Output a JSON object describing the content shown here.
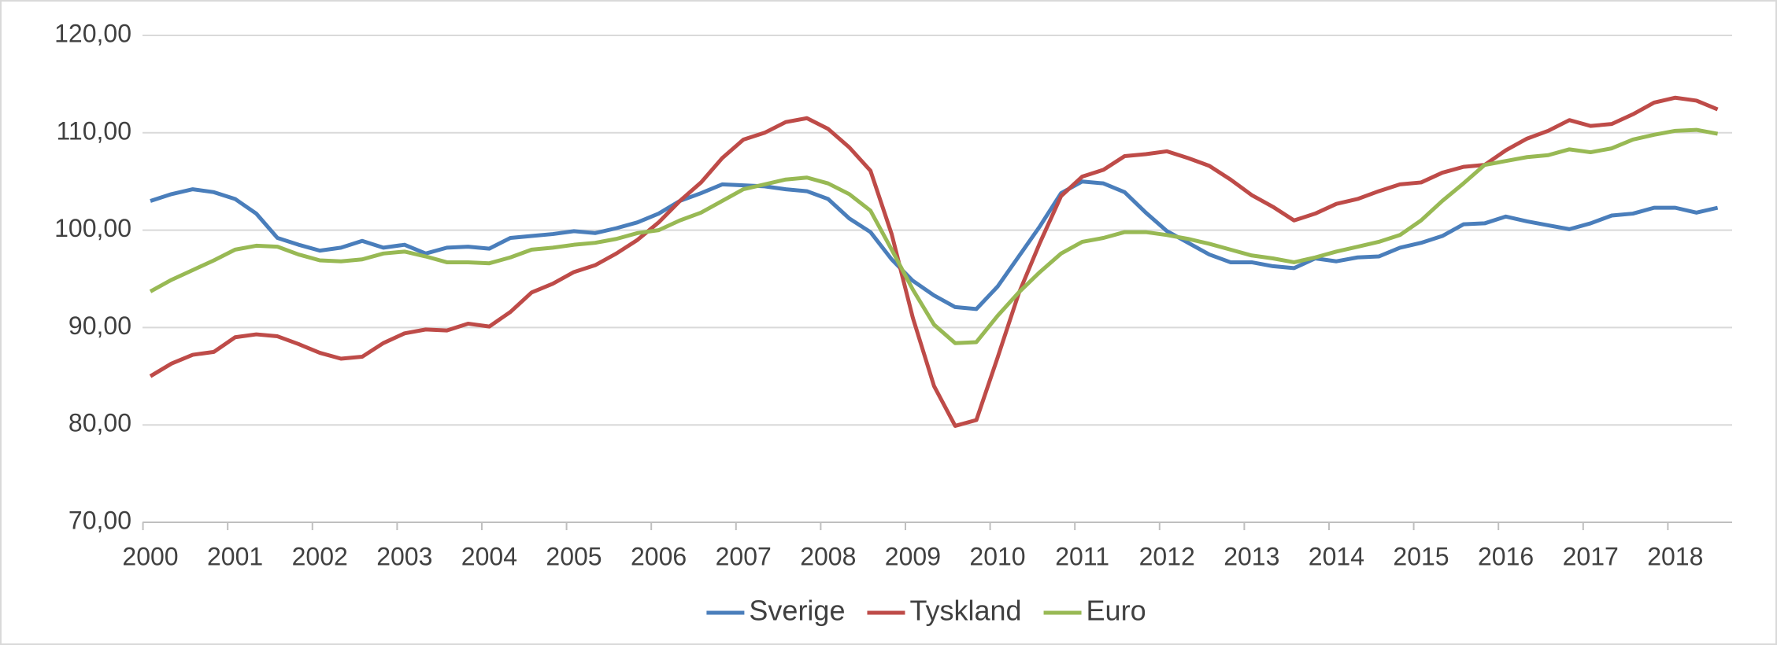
{
  "chart_data": {
    "type": "line",
    "categories": [
      "2000",
      null,
      null,
      null,
      "2001",
      null,
      null,
      null,
      "2002",
      null,
      null,
      null,
      "2003",
      null,
      null,
      null,
      "2004",
      null,
      null,
      null,
      "2005",
      null,
      null,
      null,
      "2006",
      null,
      null,
      null,
      "2007",
      null,
      null,
      null,
      "2008",
      null,
      null,
      null,
      "2009",
      null,
      null,
      null,
      "2010",
      null,
      null,
      null,
      "2011",
      null,
      null,
      null,
      "2012",
      null,
      null,
      null,
      "2013",
      null,
      null,
      null,
      "2014",
      null,
      null,
      null,
      "2015",
      null,
      null,
      null,
      "2016",
      null,
      null,
      null,
      "2017",
      null,
      null,
      null,
      "2018",
      null,
      null
    ],
    "series": [
      {
        "name": "Sverige",
        "color": "#4a7ebb",
        "values": [
          103.0,
          103.7,
          104.2,
          103.9,
          103.2,
          101.7,
          99.2,
          98.5,
          97.9,
          98.2,
          98.9,
          98.2,
          98.5,
          97.6,
          98.2,
          98.3,
          98.1,
          99.2,
          99.4,
          99.6,
          99.9,
          99.7,
          100.2,
          100.8,
          101.7,
          103.0,
          103.8,
          104.7,
          104.6,
          104.5,
          104.2,
          104.0,
          103.2,
          101.2,
          99.8,
          97.0,
          94.8,
          93.3,
          92.1,
          91.9,
          94.2,
          97.3,
          100.4,
          103.8,
          105.0,
          104.8,
          103.9,
          101.8,
          99.9,
          98.7,
          97.5,
          96.7,
          96.7,
          96.3,
          96.1,
          97.1,
          96.8,
          97.2,
          97.3,
          98.2,
          98.7,
          99.4,
          100.6,
          100.7,
          101.4,
          100.9,
          100.5,
          100.1,
          100.7,
          101.5,
          101.7,
          102.3,
          102.3,
          101.8,
          102.3
        ]
      },
      {
        "name": "Tyskland",
        "color": "#be4b48",
        "values": [
          85.0,
          86.3,
          87.2,
          87.5,
          89.0,
          89.3,
          89.1,
          88.3,
          87.4,
          86.8,
          87.0,
          88.4,
          89.4,
          89.8,
          89.7,
          90.4,
          90.1,
          91.6,
          93.6,
          94.5,
          95.7,
          96.4,
          97.6,
          99.0,
          100.8,
          103.0,
          104.9,
          107.4,
          109.3,
          110.0,
          111.1,
          111.5,
          110.4,
          108.5,
          106.1,
          99.6,
          91.0,
          84.0,
          79.9,
          80.5,
          86.9,
          93.5,
          98.7,
          103.5,
          105.5,
          106.2,
          107.6,
          107.8,
          108.1,
          107.4,
          106.6,
          105.2,
          103.6,
          102.4,
          101.0,
          101.7,
          102.7,
          103.2,
          104.0,
          104.7,
          104.9,
          105.9,
          106.5,
          106.7,
          108.2,
          109.4,
          110.2,
          111.3,
          110.7,
          110.9,
          111.9,
          113.1,
          113.6,
          113.3,
          112.4
        ]
      },
      {
        "name": "Euro",
        "color": "#98b954",
        "values": [
          93.7,
          94.9,
          95.9,
          96.9,
          98.0,
          98.4,
          98.3,
          97.5,
          96.9,
          96.8,
          97.0,
          97.6,
          97.8,
          97.3,
          96.7,
          96.7,
          96.6,
          97.2,
          98.0,
          98.2,
          98.5,
          98.7,
          99.1,
          99.7,
          100.0,
          101.0,
          101.8,
          103.0,
          104.2,
          104.7,
          105.2,
          105.4,
          104.8,
          103.7,
          102.0,
          98.0,
          93.9,
          90.3,
          88.4,
          88.5,
          91.2,
          93.6,
          95.7,
          97.6,
          98.8,
          99.2,
          99.8,
          99.8,
          99.5,
          99.1,
          98.6,
          98.0,
          97.4,
          97.1,
          96.7,
          97.2,
          97.8,
          98.3,
          98.8,
          99.5,
          101.0,
          103.0,
          104.8,
          106.7,
          107.1,
          107.5,
          107.7,
          108.3,
          108.0,
          108.4,
          109.3,
          109.8,
          110.2,
          110.3,
          109.9
        ]
      }
    ],
    "ylim": [
      70,
      120
    ],
    "yticks": [
      {
        "value": 70,
        "label": "70,00"
      },
      {
        "value": 80,
        "label": "80,00"
      },
      {
        "value": 90,
        "label": "90,00"
      },
      {
        "value": 100,
        "label": "100,00"
      },
      {
        "value": 110,
        "label": "110,00"
      },
      {
        "value": 120,
        "label": "120,00"
      }
    ],
    "grid": true,
    "legend": "bottom"
  }
}
